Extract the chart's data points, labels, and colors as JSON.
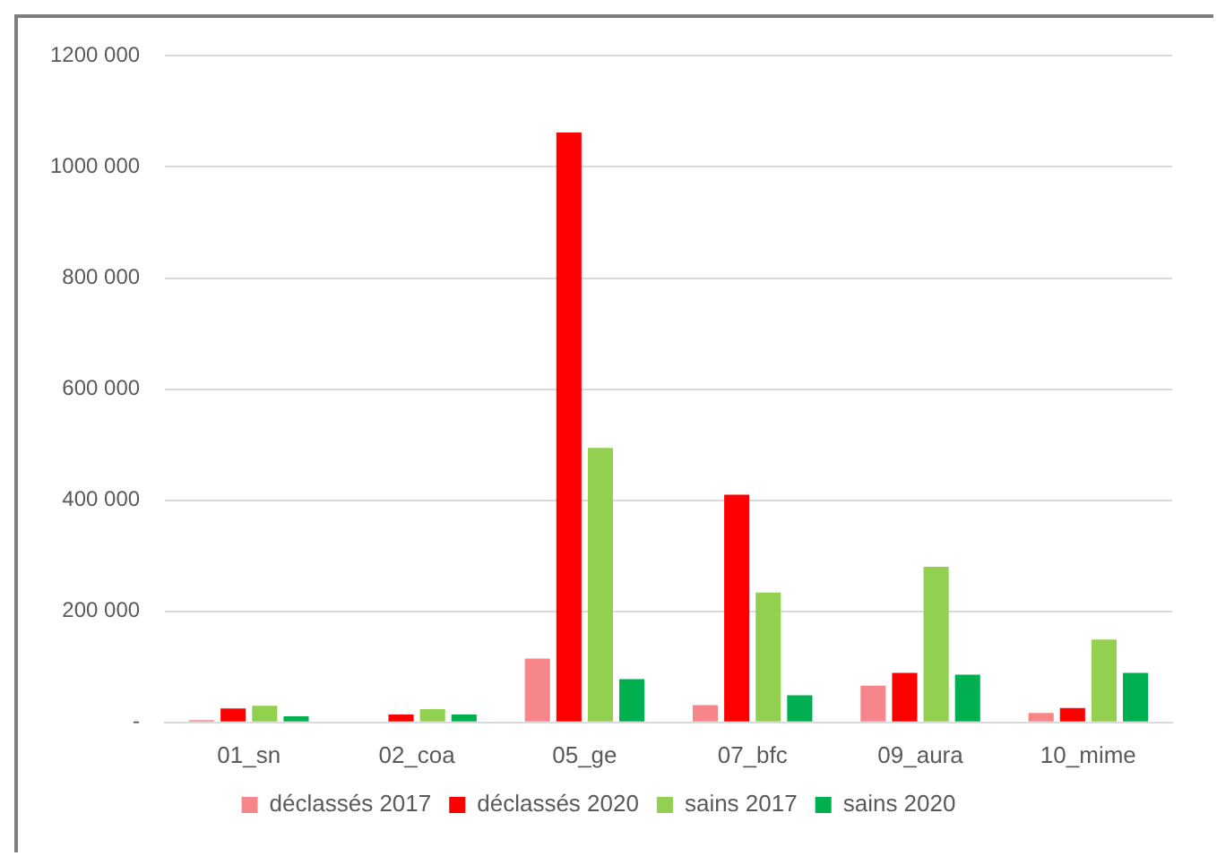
{
  "chart_data": {
    "type": "bar",
    "categories": [
      "01_sn",
      "02_coa",
      "05_ge",
      "07_bfc",
      "09_aura",
      "10_mime"
    ],
    "series": [
      {
        "name": "déclassés 2017",
        "color": "#f7868a",
        "values": [
          4000,
          null,
          115000,
          31000,
          66000,
          17000
        ]
      },
      {
        "name": "déclassés 2020",
        "color": "#ff0000",
        "values": [
          25000,
          14000,
          1062000,
          410000,
          89000,
          26000
        ]
      },
      {
        "name": "sains 2017",
        "color": "#92d050",
        "values": [
          30000,
          24000,
          494000,
          234000,
          280000,
          149000
        ]
      },
      {
        "name": "sains 2020",
        "color": "#00b050",
        "values": [
          11000,
          14000,
          78000,
          49000,
          86000,
          89000
        ]
      }
    ],
    "ylim": [
      0,
      1200000
    ],
    "yticks": [
      {
        "value": 0,
        "label": "-"
      },
      {
        "value": 200000,
        "label": "200 000"
      },
      {
        "value": 400000,
        "label": "400 000"
      },
      {
        "value": 600000,
        "label": "600 000"
      },
      {
        "value": 800000,
        "label": "800 000"
      },
      {
        "value": 1000000,
        "label": "1000 000"
      },
      {
        "value": 1200000,
        "label": "1200 000"
      }
    ],
    "grid": "y",
    "legend": "bottom"
  }
}
